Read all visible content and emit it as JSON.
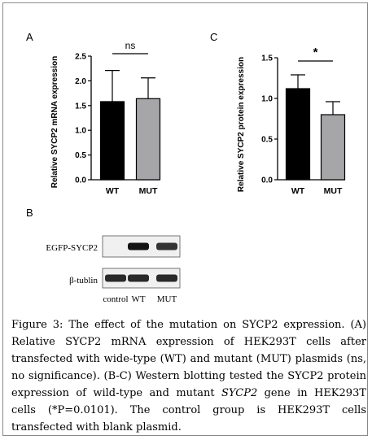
{
  "chart_data": [
    {
      "panel": "A",
      "type": "bar",
      "categories": [
        "WT",
        "MUT"
      ],
      "values": [
        1.58,
        1.64
      ],
      "errors": [
        0.63,
        0.42
      ],
      "colors": [
        "#000000",
        "#a6a6a8"
      ],
      "ylabel": "Relative SYCP2 mRNA expression",
      "ylim": [
        0,
        2.5
      ],
      "yticks": [
        "0.0",
        "0.5",
        "1.0",
        "1.5",
        "2.0",
        "2.5"
      ],
      "significance": "ns"
    },
    {
      "panel": "C",
      "type": "bar",
      "categories": [
        "WT",
        "MUT"
      ],
      "values": [
        1.12,
        0.8
      ],
      "errors": [
        0.17,
        0.16
      ],
      "colors": [
        "#000000",
        "#a6a6a8"
      ],
      "ylabel": "Relative SYCP2 protein expression",
      "ylim": [
        0,
        1.5
      ],
      "yticks": [
        "0.0",
        "0.5",
        "1.0",
        "1.5"
      ],
      "significance": "*"
    }
  ],
  "blot": {
    "panel": "B",
    "rows": [
      {
        "label": "EGFP-SYCP2",
        "intensities": [
          0.0,
          1.0,
          0.85
        ]
      },
      {
        "label": "β-tublin",
        "intensities": [
          0.9,
          0.9,
          0.9
        ]
      }
    ],
    "lanes": [
      "control",
      "WT",
      "MUT"
    ]
  },
  "caption": {
    "part1": "Figure 3: The effect of the mutation on SYCP2 expression. (A) Relative SYCP2 mRNA expression of HEK293T cells after transfected with wide-type (WT) and mutant (MUT) plasmids (ns, no significance). (B-C) Western blotting tested the SYCP2 protein expression of wild-type and mutant ",
    "gene": "SYCP2",
    "part2": " gene in HEK293T cells (*P=0.0101). The control group is HEK293T cells transfected with blank plasmid."
  }
}
